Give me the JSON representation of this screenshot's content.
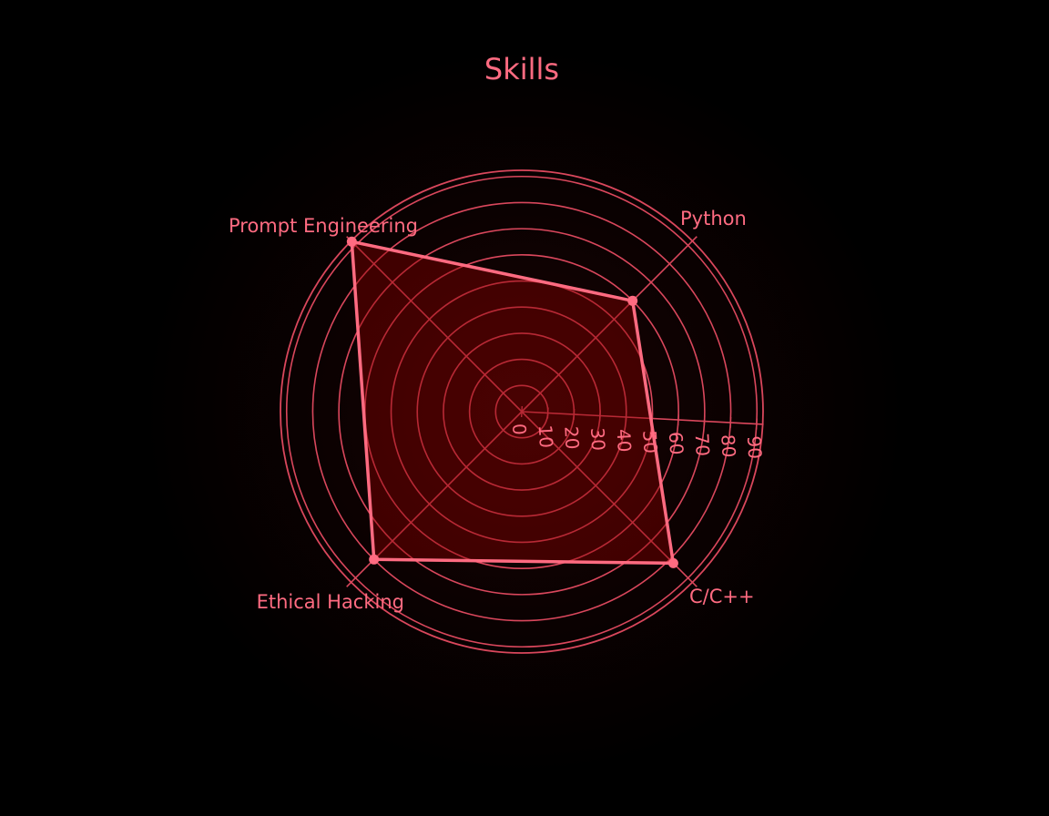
{
  "colors": {
    "background": "#000000",
    "accent": "#ff6b81",
    "grid": "#d9475c",
    "fill": "#8b0000"
  },
  "chart_data": {
    "type": "radar",
    "title": "Skills",
    "categories": [
      "Python",
      "C/C++",
      "Ethical Hacking",
      "Prompt Engineering"
    ],
    "values": [
      60,
      82,
      80,
      92
    ],
    "radial_axis": {
      "range": [
        0,
        92
      ],
      "ticks": [
        0,
        10,
        20,
        30,
        40,
        50,
        60,
        70,
        80,
        90
      ],
      "tick_labels": [
        "0",
        "10",
        "20",
        "30",
        "40",
        "50",
        "60",
        "70",
        "80",
        "90"
      ]
    },
    "grid": true,
    "legend": false
  }
}
